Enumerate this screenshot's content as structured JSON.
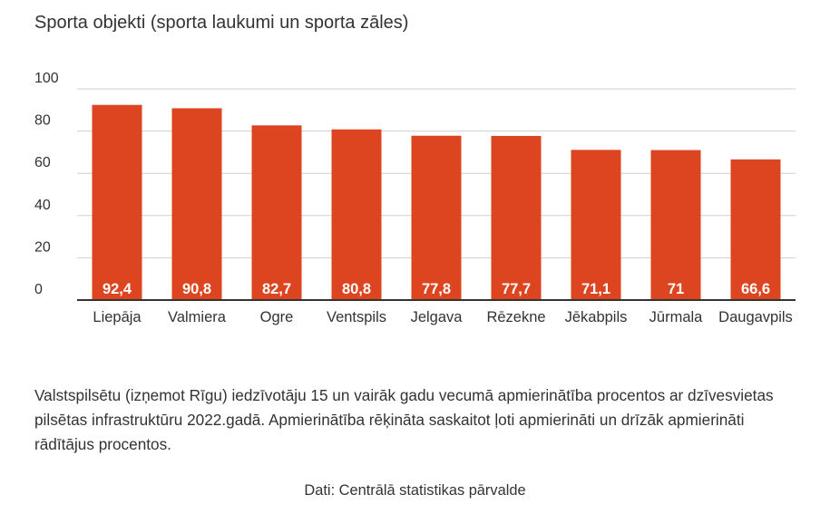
{
  "title": "Sporta objekti (sporta laukumi un sporta zāles)",
  "caption": "Valstspilsētu (izņemot Rīgu) iedzīvotāju 15 un vairāk gadu vecumā apmierinātība procentos ar dzīvesvietas pilsētas infrastruktūru 2022.gadā. Apmierinātība rēķināta saskaitot ļoti apmierināti un drīzāk apmierināti rādītājus procentos.",
  "source": "Dati: Centrālā statistikas pārvalde",
  "colors": {
    "bar": "#dc4520",
    "grid": "#cfcfcf",
    "axis": "#333333",
    "label": "#ffffff"
  },
  "chart_data": {
    "type": "bar",
    "title": "Sporta objekti (sporta laukumi un sporta zāles)",
    "categories": [
      "Liepāja",
      "Valmiera",
      "Ogre",
      "Ventspils",
      "Jelgava",
      "Rēzekne",
      "Jēkabpils",
      "Jūrmala",
      "Daugavpils"
    ],
    "values": [
      92.4,
      90.8,
      82.7,
      80.8,
      77.8,
      77.7,
      71.1,
      71,
      66.6
    ],
    "value_labels": [
      "92,4",
      "90,8",
      "82,7",
      "80,8",
      "77,8",
      "77,7",
      "71,1",
      "71",
      "66,6"
    ],
    "ylim": [
      0,
      100
    ],
    "yticks": [
      0,
      20,
      40,
      60,
      80,
      100
    ],
    "grid": true,
    "xlabel": "",
    "ylabel": ""
  }
}
